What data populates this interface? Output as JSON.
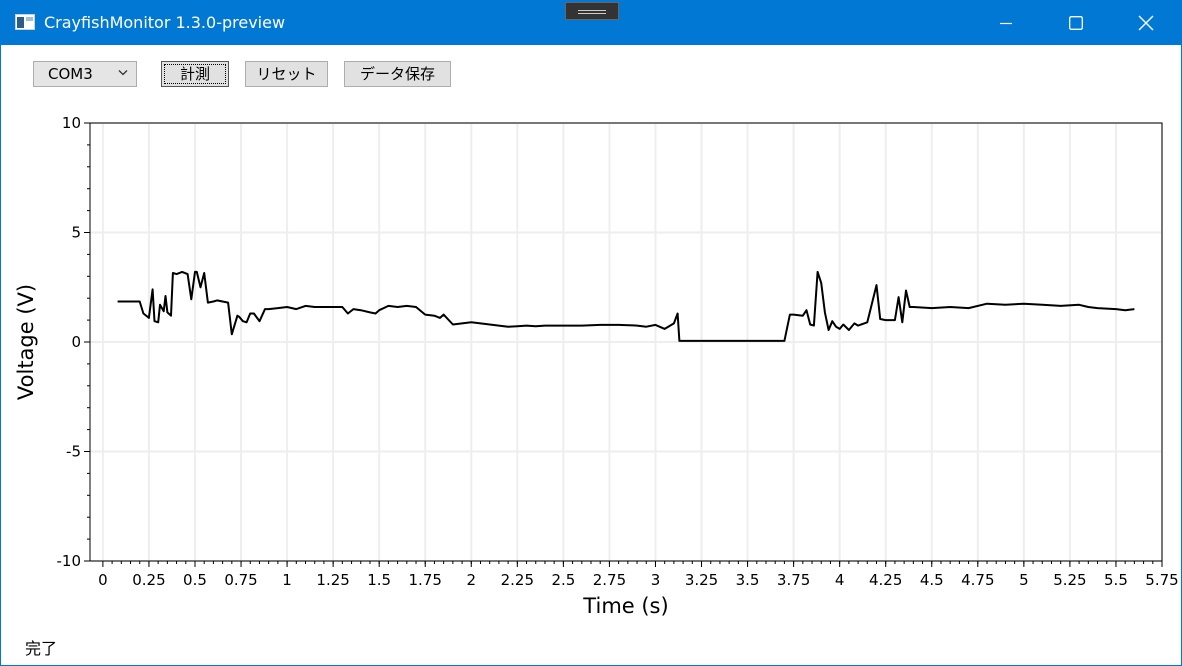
{
  "window": {
    "title": "CrayfishMonitor 1.3.0-preview"
  },
  "toolbar": {
    "port_value": "COM3",
    "measure_label": "計測",
    "reset_label": "リセット",
    "save_label": "データ保存"
  },
  "status": {
    "text": "完了"
  },
  "colors": {
    "titlebar": "#0078d4",
    "line": "#000000",
    "grid": "#eeeeee"
  },
  "chart_data": {
    "type": "line",
    "title": "",
    "xlabel": "Time (s)",
    "ylabel": "Voltage (V)",
    "xlim": [
      -0.07,
      5.75
    ],
    "ylim": [
      -10,
      10
    ],
    "xticks": [
      "0",
      "0.25",
      "0.5",
      "0.75",
      "1",
      "1.25",
      "1.5",
      "1.75",
      "2",
      "2.25",
      "2.5",
      "2.75",
      "3",
      "3.25",
      "3.5",
      "3.75",
      "4",
      "4.25",
      "4.5",
      "4.75",
      "5",
      "5.25",
      "5.5",
      "5.75"
    ],
    "yticks": [
      "10",
      "5",
      "0",
      "-5",
      "-10"
    ],
    "grid": true,
    "series": [
      {
        "x": [
          0.08,
          0.2,
          0.22,
          0.25,
          0.27,
          0.28,
          0.3,
          0.31,
          0.33,
          0.34,
          0.35,
          0.37,
          0.38,
          0.4,
          0.43,
          0.46,
          0.48,
          0.5,
          0.51,
          0.53,
          0.55,
          0.57,
          0.6,
          0.62,
          0.65,
          0.68,
          0.7,
          0.73,
          0.74,
          0.76,
          0.78,
          0.8,
          0.82,
          0.85,
          0.88,
          0.9,
          0.95,
          1.0,
          1.05,
          1.1,
          1.15,
          1.2,
          1.25,
          1.3,
          1.33,
          1.36,
          1.4,
          1.45,
          1.48,
          1.5,
          1.55,
          1.6,
          1.65,
          1.7,
          1.75,
          1.8,
          1.83,
          1.85,
          1.9,
          1.95,
          2.0,
          2.05,
          2.1,
          2.15,
          2.2,
          2.25,
          2.3,
          2.35,
          2.4,
          2.45,
          2.5,
          2.6,
          2.7,
          2.8,
          2.9,
          2.95,
          3.0,
          3.05,
          3.1,
          3.12,
          3.13,
          3.2,
          3.3,
          3.4,
          3.5,
          3.6,
          3.7,
          3.73,
          3.75,
          3.8,
          3.82,
          3.84,
          3.86,
          3.88,
          3.9,
          3.92,
          3.94,
          3.96,
          3.98,
          4.0,
          4.02,
          4.05,
          4.08,
          4.1,
          4.15,
          4.2,
          4.22,
          4.25,
          4.3,
          4.32,
          4.34,
          4.36,
          4.38,
          4.4,
          4.5,
          4.6,
          4.7,
          4.8,
          4.9,
          5.0,
          5.1,
          5.2,
          5.3,
          5.35,
          5.4,
          5.5,
          5.55,
          5.6
        ],
        "y": [
          1.85,
          1.85,
          1.3,
          1.1,
          2.4,
          0.95,
          0.9,
          1.7,
          1.4,
          2.1,
          1.35,
          1.2,
          3.15,
          3.1,
          3.2,
          3.1,
          1.95,
          3.2,
          3.2,
          2.5,
          3.15,
          1.8,
          1.85,
          1.9,
          1.85,
          1.8,
          0.35,
          1.2,
          1.15,
          0.95,
          0.9,
          1.3,
          1.3,
          0.95,
          1.5,
          1.5,
          1.55,
          1.6,
          1.5,
          1.65,
          1.6,
          1.6,
          1.6,
          1.6,
          1.3,
          1.5,
          1.45,
          1.35,
          1.3,
          1.45,
          1.65,
          1.6,
          1.65,
          1.6,
          1.25,
          1.2,
          1.1,
          1.25,
          0.8,
          0.85,
          0.9,
          0.85,
          0.8,
          0.75,
          0.7,
          0.72,
          0.75,
          0.72,
          0.75,
          0.75,
          0.75,
          0.75,
          0.78,
          0.78,
          0.75,
          0.7,
          0.78,
          0.6,
          0.85,
          1.3,
          0.05,
          0.05,
          0.05,
          0.05,
          0.05,
          0.05,
          0.05,
          1.25,
          1.25,
          1.2,
          1.45,
          0.8,
          0.75,
          3.2,
          2.7,
          1.35,
          0.55,
          0.95,
          0.7,
          0.6,
          0.8,
          0.55,
          0.85,
          0.75,
          0.9,
          2.6,
          1.05,
          1.0,
          1.0,
          2.05,
          0.9,
          2.35,
          1.6,
          1.6,
          1.55,
          1.6,
          1.55,
          1.75,
          1.7,
          1.75,
          1.7,
          1.65,
          1.7,
          1.6,
          1.55,
          1.5,
          1.45,
          1.5
        ]
      }
    ]
  }
}
